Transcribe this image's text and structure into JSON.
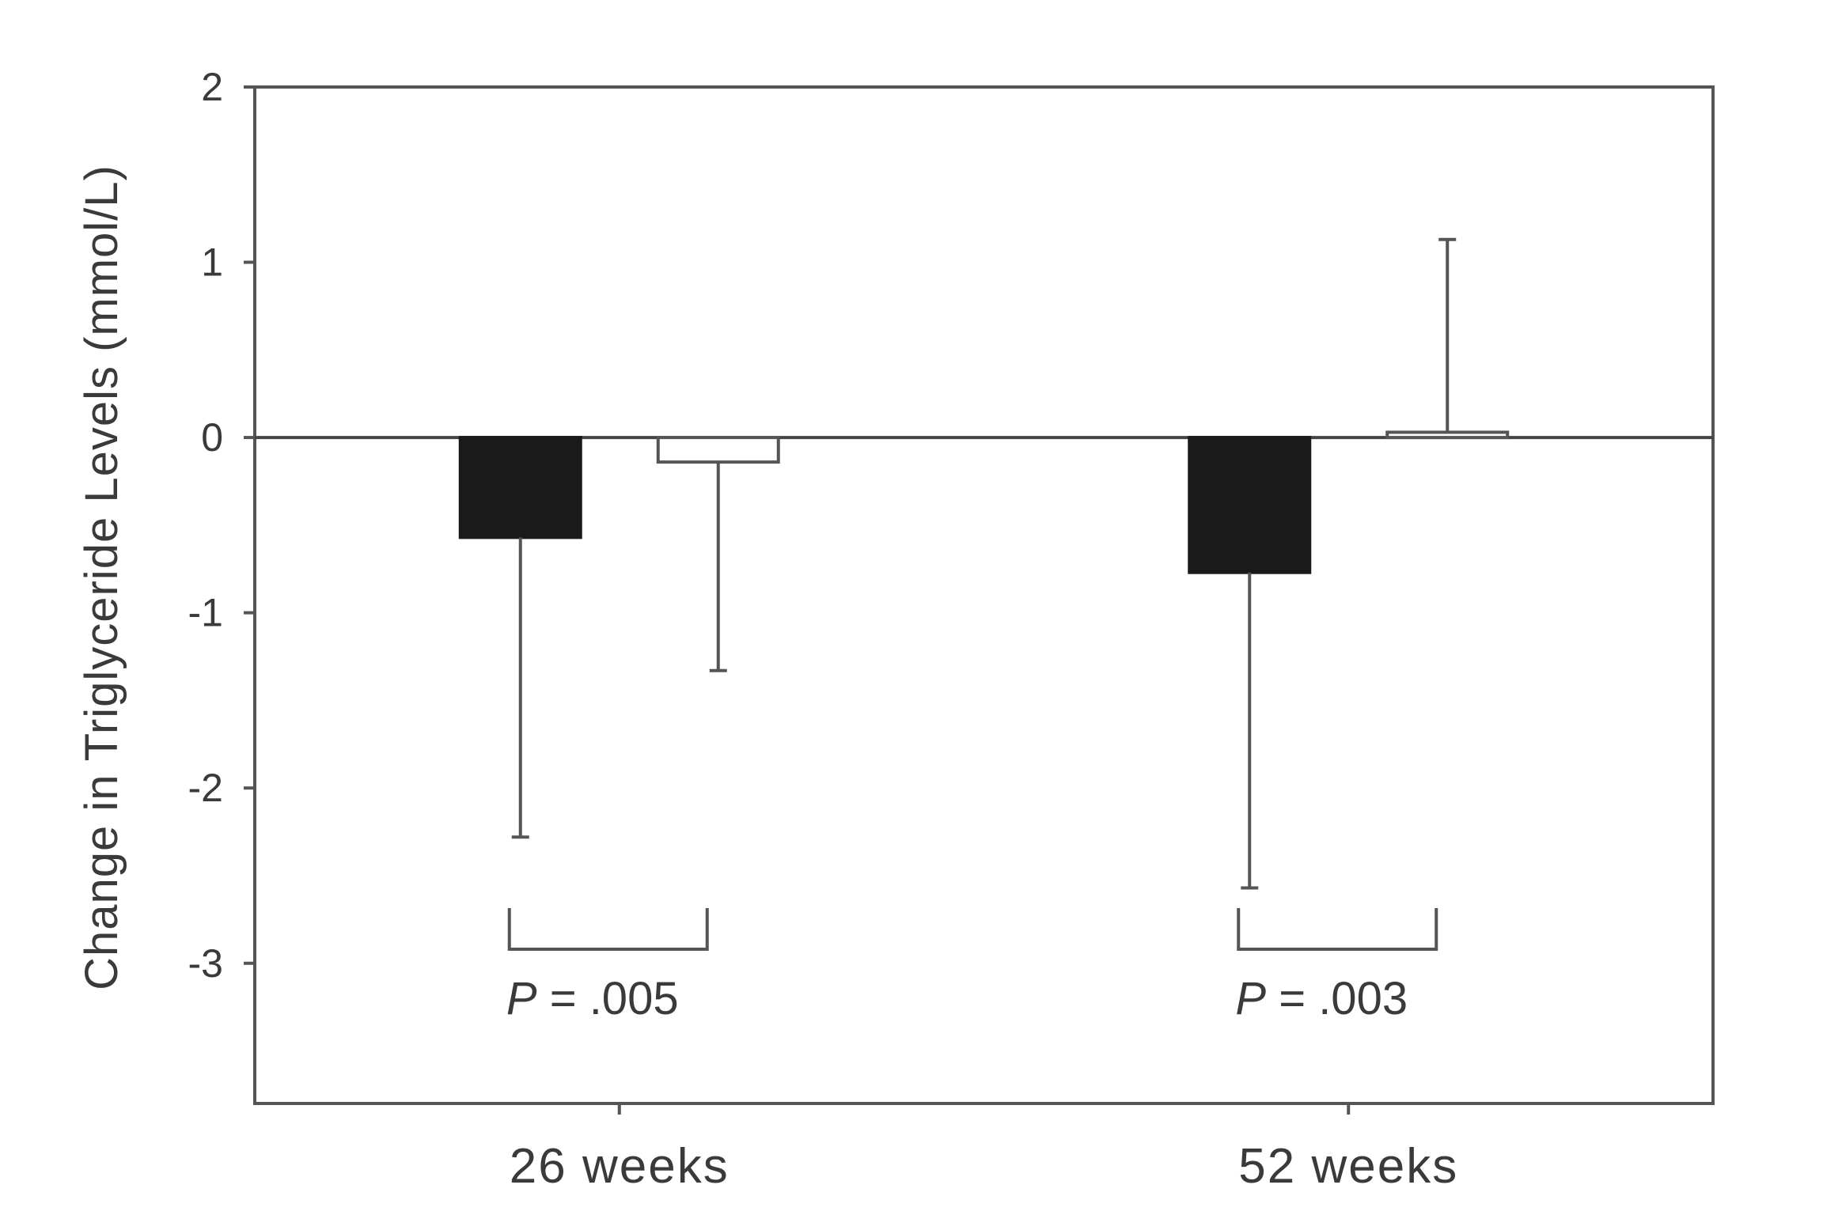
{
  "chart_data": {
    "type": "bar",
    "title": "",
    "xlabel": "",
    "ylabel": "Change in Triglyceride Levels (mmol/L)",
    "ylim": [
      -3.8,
      2
    ],
    "yticks": [
      "2",
      "1",
      "0",
      "-1",
      "-2",
      "-3"
    ],
    "ytick_values": [
      2,
      1,
      0,
      -1,
      -2,
      -3
    ],
    "grid": false,
    "legend": "none",
    "categories": [
      "26 weeks",
      "52 weeks"
    ],
    "series": [
      {
        "fill": "#1a1a1a",
        "values": [
          -0.57,
          -0.77
        ],
        "error_low": [
          -2.28,
          -2.57
        ],
        "error_high": [
          null,
          null
        ]
      },
      {
        "fill": "#ffffff",
        "values": [
          -0.14,
          0.03
        ],
        "error_low": [
          -1.33,
          null
        ],
        "error_high": [
          null,
          1.13
        ]
      }
    ],
    "annotations": [
      {
        "category": "26 weeks",
        "text_italic": "P",
        "text_rest": " = .005"
      },
      {
        "category": "52 weeks",
        "text_italic": "P",
        "text_rest": " = .003"
      }
    ]
  }
}
